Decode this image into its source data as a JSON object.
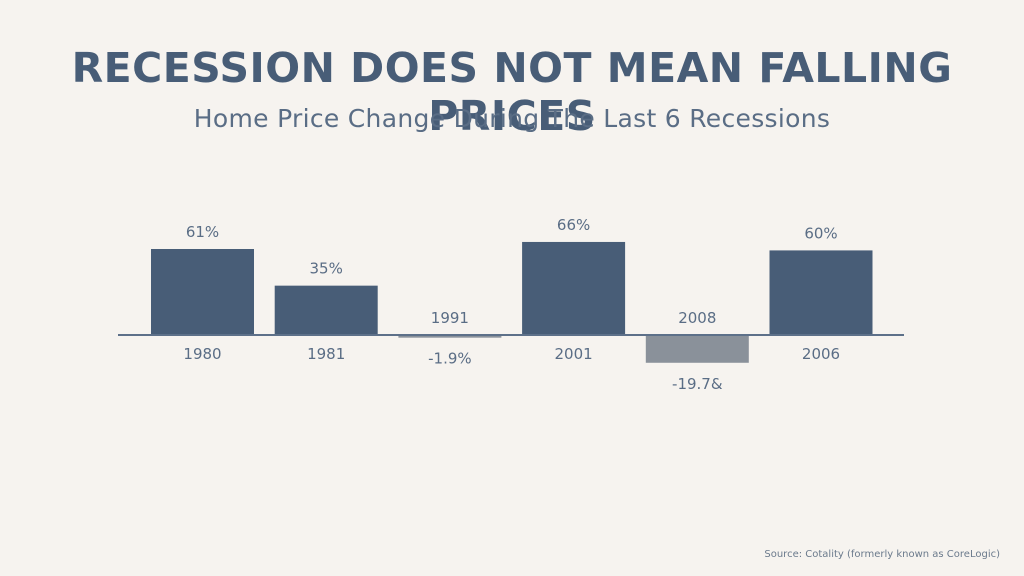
{
  "title": "RECESSION DOES NOT MEAN FALLING PRICES",
  "subtitle": "Home Price Change During The Last 6 Recessions",
  "source": "Source: Cotality (formerly known as CoreLogic)",
  "colors": {
    "background": "#f6f3ef",
    "positive_bar": "#485d77",
    "negative_bar": "#8a919a",
    "axis": "#5d7089",
    "text": "#5a6d85"
  },
  "chart_data": {
    "type": "bar",
    "title": "RECESSION DOES NOT MEAN FALLING PRICES",
    "subtitle": "Home Price Change During The Last 6 Recessions",
    "xlabel": "",
    "ylabel": "",
    "categories": [
      "1980",
      "1981",
      "1991",
      "2001",
      "2008",
      "2006"
    ],
    "values": [
      61,
      35,
      -1.9,
      66,
      -19.7,
      60
    ],
    "value_labels": [
      "61%",
      "35%",
      "-1.9%",
      "66%",
      "-19.7&",
      "60%"
    ],
    "ylim": [
      -20,
      70
    ],
    "grid": false,
    "legend": "none"
  }
}
